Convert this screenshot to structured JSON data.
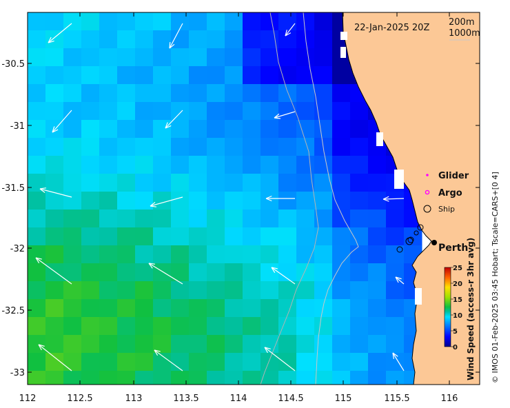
{
  "map": {
    "timestamp": "22-Jan-2025 20Z",
    "depth_labels": [
      "200m",
      "1000m"
    ],
    "legend": [
      {
        "label": "Glider",
        "marker": "dot",
        "color": "#ff00ff"
      },
      {
        "label": "Argo",
        "marker": "circle",
        "color": "#ff00ff"
      },
      {
        "label": "Ship",
        "marker": "circle",
        "color": "#000000"
      }
    ],
    "city": "Perth",
    "credit": "© IMOS 01-Feb-2025 03:45 Hobart; Tscale=CARS+[0 4]",
    "colorbar": {
      "label": "Wind Speed (access-r 3hr avg)",
      "ticks": [
        "25",
        "20",
        "15",
        "10",
        "5",
        "0"
      ],
      "range": [
        0,
        25
      ]
    },
    "x_ticks": [
      "112",
      "112.5",
      "113",
      "113.5",
      "114",
      "114.5",
      "115",
      "115.5",
      "116"
    ],
    "y_ticks": [
      "-30.5",
      "-31",
      "-31.5",
      "-32",
      "-32.5",
      "-33"
    ],
    "colors": {
      "land": "#fcc896",
      "deep": "#0000a0",
      "strong": "#10c030"
    }
  }
}
